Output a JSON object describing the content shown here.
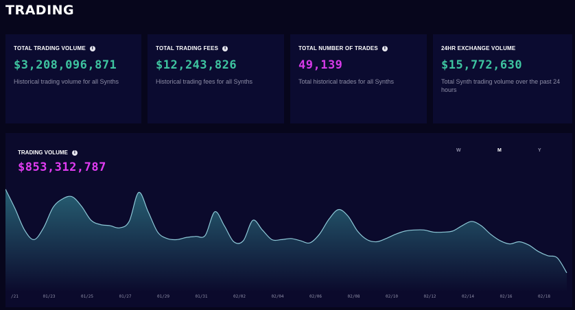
{
  "page": {
    "title": "TRADING"
  },
  "cards": [
    {
      "label": "TOTAL TRADING VOLUME",
      "value": "$3,208,096,871",
      "description": "Historical trading volume for all Synths",
      "color": "#3ec4a0"
    },
    {
      "label": "TOTAL TRADING FEES",
      "value": "$12,243,826",
      "description": "Historical trading fees for all Synths",
      "color": "#3ec4a0"
    },
    {
      "label": "TOTAL NUMBER OF TRADES",
      "value": "49,139",
      "description": "Total historical trades for all Synths",
      "color": "#d63ae8"
    },
    {
      "label": "24HR EXCHANGE VOLUME",
      "value": "$15,772,630",
      "description": "Total Synth trading volume over the past 24 hours",
      "color": "#3ec4a0"
    }
  ],
  "info_icon": "info-icon",
  "volume_panel": {
    "label": "TRADING VOLUME",
    "value": "$853,312,787",
    "periods": [
      "W",
      "M",
      "Y"
    ],
    "active_period": "M"
  },
  "chart_data": {
    "type": "area",
    "title": "",
    "xlabel": "",
    "ylabel": "",
    "grid": false,
    "legend": "none",
    "line_color": "#8ec9d8",
    "fill_color": "#2c6f80",
    "tick_labels": [
      "/21",
      "01/23",
      "01/25",
      "01/27",
      "01/29",
      "01/31",
      "02/02",
      "02/04",
      "02/06",
      "02/08",
      "02/10",
      "02/12",
      "02/14",
      "02/16",
      "02/18"
    ],
    "x": [
      0,
      1,
      2,
      3,
      4,
      5,
      6,
      7,
      8,
      9,
      10,
      11,
      12,
      13,
      14,
      15,
      16,
      17,
      18,
      19,
      20,
      21,
      22,
      23,
      24,
      25,
      26,
      27,
      28,
      29,
      30,
      31,
      32,
      33,
      34,
      35,
      36,
      37,
      38,
      39,
      40,
      41,
      42,
      43,
      44,
      45,
      46,
      47,
      48,
      49,
      50,
      51,
      52,
      53,
      54,
      55,
      56,
      57,
      58,
      59
    ],
    "values": [
      96,
      78,
      58,
      49,
      60,
      79,
      87,
      89,
      80,
      67,
      63,
      62,
      60,
      66,
      93,
      75,
      56,
      50,
      49,
      51,
      52,
      53,
      75,
      62,
      47,
      48,
      67,
      58,
      49,
      49,
      50,
      48,
      46,
      54,
      68,
      77,
      71,
      57,
      49,
      47,
      50,
      54,
      57,
      58,
      58,
      56,
      56,
      57,
      62,
      66,
      62,
      54,
      48,
      45,
      47,
      44,
      38,
      34,
      32,
      18
    ],
    "ylim": [
      0,
      110
    ]
  }
}
